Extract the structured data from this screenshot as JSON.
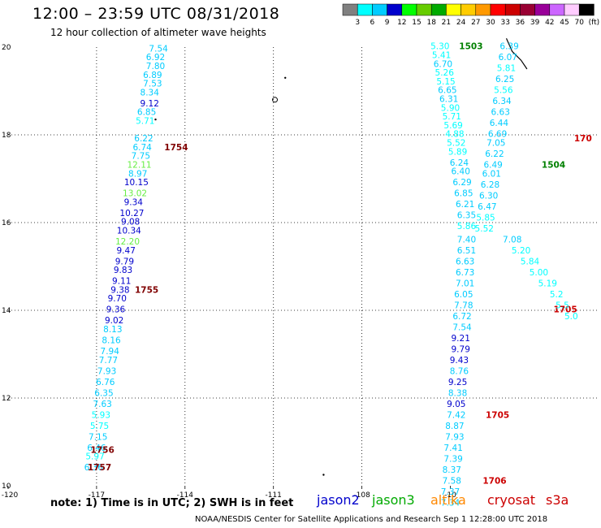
{
  "header": {
    "title": "12:00 – 23:59 UTC 08/31/2018",
    "subtitle": "12 hour collection of altimeter wave heights"
  },
  "footer": {
    "note": "note: 1) Time is in UTC; 2) SWH is in feet",
    "credit": "NOAA/NESDIS Center for Satellite Applications and Research   Sep  1 12:28:00 UTC 2018"
  },
  "satellites": [
    {
      "name": "jason2",
      "color": "#0000cc"
    },
    {
      "name": "jason3",
      "color": "#00aa00"
    },
    {
      "name": "altika",
      "color": "#ff8800"
    },
    {
      "name": "cryosat",
      "color": "#cc0000"
    },
    {
      "name": "s3a",
      "color": "#cc0000"
    }
  ],
  "colorbar": {
    "labels": [
      "3",
      "6",
      "9",
      "12",
      "15",
      "18",
      "21",
      "24",
      "27",
      "30",
      "33",
      "36",
      "39",
      "42",
      "45",
      "70",
      "(ft)"
    ],
    "colors": [
      "#808080",
      "#00ffff",
      "#00ccff",
      "#0000cc",
      "#00ff00",
      "#66cc00",
      "#00aa00",
      "#ffff00",
      "#ffcc00",
      "#ff9900",
      "#ff0000",
      "#cc0000",
      "#990033",
      "#990099",
      "#cc66ff",
      "#ffccff",
      "#000000"
    ]
  },
  "chart_data": {
    "type": "scatter",
    "xlim": [
      -120,
      -100
    ],
    "ylim": [
      10,
      20
    ],
    "xticks": [
      "-120",
      "-117",
      "-114",
      "-111",
      "-108",
      "-10"
    ],
    "yticks": [
      "10",
      "12",
      "14",
      "16",
      "18",
      "20"
    ],
    "grid": true,
    "tracks": [
      {
        "name": "west-track",
        "points": [
          {
            "lon": -114.9,
            "lat": 19.9,
            "v": "7.54"
          },
          {
            "lon": -115.0,
            "lat": 19.7,
            "v": "6.92"
          },
          {
            "lon": -115.0,
            "lat": 19.5,
            "v": "7.80"
          },
          {
            "lon": -115.1,
            "lat": 19.3,
            "v": "6.89"
          },
          {
            "lon": -115.1,
            "lat": 19.1,
            "v": "7.53"
          },
          {
            "lon": -115.2,
            "lat": 18.9,
            "v": "8.34"
          },
          {
            "lon": -115.2,
            "lat": 18.65,
            "v": "9.12"
          },
          {
            "lon": -115.3,
            "lat": 18.45,
            "v": "6.85"
          },
          {
            "lon": -115.35,
            "lat": 18.25,
            "v": "5.71"
          },
          {
            "lon": -115.4,
            "lat": 17.85,
            "v": "6.22"
          },
          {
            "lon": -115.45,
            "lat": 17.65,
            "v": "6.74"
          },
          {
            "lon": -115.5,
            "lat": 17.45,
            "v": "7.75"
          },
          {
            "lon": -115.55,
            "lat": 17.25,
            "v": "12.11"
          },
          {
            "lon": -115.6,
            "lat": 17.05,
            "v": "8.97"
          },
          {
            "lon": -115.65,
            "lat": 16.85,
            "v": "10.15"
          },
          {
            "lon": -115.7,
            "lat": 16.6,
            "v": "13.02"
          },
          {
            "lon": -115.75,
            "lat": 16.4,
            "v": "9.34"
          },
          {
            "lon": -115.8,
            "lat": 16.15,
            "v": "10.27"
          },
          {
            "lon": -115.85,
            "lat": 15.95,
            "v": "9.08"
          },
          {
            "lon": -115.9,
            "lat": 15.75,
            "v": "10.34"
          },
          {
            "lon": -115.95,
            "lat": 15.5,
            "v": "12.20"
          },
          {
            "lon": -116.0,
            "lat": 15.3,
            "v": "9.47"
          },
          {
            "lon": -116.05,
            "lat": 15.05,
            "v": "9.79"
          },
          {
            "lon": -116.1,
            "lat": 14.85,
            "v": "9.83"
          },
          {
            "lon": -116.15,
            "lat": 14.6,
            "v": "9.11"
          },
          {
            "lon": -116.2,
            "lat": 14.4,
            "v": "9.38"
          },
          {
            "lon": -116.3,
            "lat": 14.2,
            "v": "9.70"
          },
          {
            "lon": -116.35,
            "lat": 13.95,
            "v": "9.36"
          },
          {
            "lon": -116.4,
            "lat": 13.7,
            "v": "9.02"
          },
          {
            "lon": -116.45,
            "lat": 13.5,
            "v": "8.13"
          },
          {
            "lon": -116.5,
            "lat": 13.25,
            "v": "8.16"
          },
          {
            "lon": -116.55,
            "lat": 13.0,
            "v": "7.94"
          },
          {
            "lon": -116.6,
            "lat": 12.8,
            "v": "7.77"
          },
          {
            "lon": -116.65,
            "lat": 12.55,
            "v": "7.93"
          },
          {
            "lon": -116.7,
            "lat": 12.3,
            "v": "6.76"
          },
          {
            "lon": -116.75,
            "lat": 12.05,
            "v": "6.35"
          },
          {
            "lon": -116.8,
            "lat": 11.8,
            "v": "7.63"
          },
          {
            "lon": -116.85,
            "lat": 11.55,
            "v": "5.93"
          },
          {
            "lon": -116.9,
            "lat": 11.3,
            "v": "5.75"
          },
          {
            "lon": -116.95,
            "lat": 11.05,
            "v": "7.15"
          },
          {
            "lon": -117.0,
            "lat": 10.8,
            "v": "6.46"
          },
          {
            "lon": -117.05,
            "lat": 10.6,
            "v": "5.97"
          },
          {
            "lon": -117.1,
            "lat": 10.35,
            "v": "6.36"
          }
        ],
        "times": [
          {
            "lon": -114.3,
            "lat": 17.65,
            "t": "1754",
            "color": "#800000"
          },
          {
            "lon": -115.3,
            "lat": 14.4,
            "t": "1755",
            "color": "#800000"
          },
          {
            "lon": -116.8,
            "lat": 10.75,
            "t": "1756",
            "color": "#800000"
          },
          {
            "lon": -116.9,
            "lat": 10.35,
            "t": "1757",
            "color": "#800000"
          }
        ]
      },
      {
        "name": "east-track",
        "points": [
          {
            "lon": -105.35,
            "lat": 19.95,
            "v": "5.30"
          },
          {
            "lon": -105.3,
            "lat": 19.75,
            "v": "5.41"
          },
          {
            "lon": -105.25,
            "lat": 19.55,
            "v": "6.70"
          },
          {
            "lon": -105.2,
            "lat": 19.35,
            "v": "5.26"
          },
          {
            "lon": -105.15,
            "lat": 19.15,
            "v": "5.15"
          },
          {
            "lon": -105.1,
            "lat": 18.95,
            "v": "6.65"
          },
          {
            "lon": -105.05,
            "lat": 18.75,
            "v": "6.31"
          },
          {
            "lon": -105.0,
            "lat": 18.55,
            "v": "5.90"
          },
          {
            "lon": -104.95,
            "lat": 18.35,
            "v": "5.71"
          },
          {
            "lon": -104.9,
            "lat": 18.15,
            "v": "5.69"
          },
          {
            "lon": -104.85,
            "lat": 17.95,
            "v": "4.88"
          },
          {
            "lon": -104.8,
            "lat": 17.75,
            "v": "5.52"
          },
          {
            "lon": -104.75,
            "lat": 17.55,
            "v": "5.89"
          },
          {
            "lon": -104.7,
            "lat": 17.3,
            "v": "6.24"
          },
          {
            "lon": -104.65,
            "lat": 17.1,
            "v": "6.40"
          },
          {
            "lon": -104.6,
            "lat": 16.85,
            "v": "6.29"
          },
          {
            "lon": -104.55,
            "lat": 16.6,
            "v": "6.85"
          },
          {
            "lon": -104.5,
            "lat": 16.35,
            "v": "6.21"
          },
          {
            "lon": -104.45,
            "lat": 16.1,
            "v": "6.35"
          },
          {
            "lon": -104.45,
            "lat": 15.85,
            "v": "5.86"
          },
          {
            "lon": -104.45,
            "lat": 15.55,
            "v": "7.40"
          },
          {
            "lon": -104.45,
            "lat": 15.3,
            "v": "6.51"
          },
          {
            "lon": -104.5,
            "lat": 15.05,
            "v": "6.63"
          },
          {
            "lon": -104.5,
            "lat": 14.8,
            "v": "6.73"
          },
          {
            "lon": -104.5,
            "lat": 14.55,
            "v": "7.01"
          },
          {
            "lon": -104.55,
            "lat": 14.3,
            "v": "6.05"
          },
          {
            "lon": -104.55,
            "lat": 14.05,
            "v": "7.78"
          },
          {
            "lon": -104.6,
            "lat": 13.8,
            "v": "6.72"
          },
          {
            "lon": -104.6,
            "lat": 13.55,
            "v": "7.54"
          },
          {
            "lon": -104.65,
            "lat": 13.3,
            "v": "9.21"
          },
          {
            "lon": -104.65,
            "lat": 13.05,
            "v": "9.79"
          },
          {
            "lon": -104.7,
            "lat": 12.8,
            "v": "9.43"
          },
          {
            "lon": -104.7,
            "lat": 12.55,
            "v": "8.76"
          },
          {
            "lon": -104.75,
            "lat": 12.3,
            "v": "9.25"
          },
          {
            "lon": -104.75,
            "lat": 12.05,
            "v": "8.38"
          },
          {
            "lon": -104.8,
            "lat": 11.8,
            "v": "9.05"
          },
          {
            "lon": -104.8,
            "lat": 11.55,
            "v": "7.42"
          },
          {
            "lon": -104.85,
            "lat": 11.3,
            "v": "8.87"
          },
          {
            "lon": -104.85,
            "lat": 11.05,
            "v": "7.93"
          },
          {
            "lon": -104.9,
            "lat": 10.8,
            "v": "7.41"
          },
          {
            "lon": -104.9,
            "lat": 10.55,
            "v": "7.39"
          },
          {
            "lon": -104.95,
            "lat": 10.3,
            "v": "8.37"
          },
          {
            "lon": -104.95,
            "lat": 10.05,
            "v": "7.58"
          },
          {
            "lon": -105.0,
            "lat": 9.8,
            "v": "7.37"
          },
          {
            "lon": -105.0,
            "lat": 9.55,
            "v": "7.34"
          }
        ],
        "times": [
          {
            "lon": -104.3,
            "lat": 19.95,
            "t": "1503",
            "color": "#008000"
          },
          {
            "lon": -101.5,
            "lat": 17.25,
            "t": "1504",
            "color": "#008000"
          },
          {
            "lon": -101.1,
            "lat": 13.95,
            "t": "1705",
            "color": "#cc0000"
          },
          {
            "lon": -103.4,
            "lat": 11.55,
            "t": "1705",
            "color": "#cc0000"
          },
          {
            "lon": -103.5,
            "lat": 10.05,
            "t": "1706",
            "color": "#cc0000"
          },
          {
            "lon": -100.5,
            "lat": 17.85,
            "t": "170",
            "color": "#cc0000"
          }
        ]
      },
      {
        "name": "east-track-2",
        "points": [
          {
            "lon": -103.0,
            "lat": 19.95,
            "v": "6.39"
          },
          {
            "lon": -103.05,
            "lat": 19.7,
            "v": "6.07"
          },
          {
            "lon": -103.1,
            "lat": 19.45,
            "v": "5.81"
          },
          {
            "lon": -103.15,
            "lat": 19.2,
            "v": "6.25"
          },
          {
            "lon": -103.2,
            "lat": 18.95,
            "v": "5.56"
          },
          {
            "lon": -103.25,
            "lat": 18.7,
            "v": "6.34"
          },
          {
            "lon": -103.3,
            "lat": 18.45,
            "v": "6.63"
          },
          {
            "lon": -103.35,
            "lat": 18.2,
            "v": "6.44"
          },
          {
            "lon": -103.4,
            "lat": 17.95,
            "v": "6.69"
          },
          {
            "lon": -103.45,
            "lat": 17.75,
            "v": "7.05"
          },
          {
            "lon": -103.5,
            "lat": 17.5,
            "v": "6.22"
          },
          {
            "lon": -103.55,
            "lat": 17.25,
            "v": "6.49"
          },
          {
            "lon": -103.6,
            "lat": 17.05,
            "v": "6.01"
          },
          {
            "lon": -103.65,
            "lat": 16.8,
            "v": "6.28"
          },
          {
            "lon": -103.7,
            "lat": 16.55,
            "v": "6.30"
          },
          {
            "lon": -103.75,
            "lat": 16.3,
            "v": "6.47"
          },
          {
            "lon": -103.8,
            "lat": 16.05,
            "v": "5.85"
          },
          {
            "lon": -103.85,
            "lat": 15.8,
            "v": "5.52"
          },
          {
            "lon": -102.9,
            "lat": 15.55,
            "v": "7.08"
          },
          {
            "lon": -102.6,
            "lat": 15.3,
            "v": "5.20"
          },
          {
            "lon": -102.3,
            "lat": 15.05,
            "v": "5.84"
          },
          {
            "lon": -102.0,
            "lat": 14.8,
            "v": "5.00"
          },
          {
            "lon": -101.7,
            "lat": 14.55,
            "v": "5.19"
          },
          {
            "lon": -101.4,
            "lat": 14.3,
            "v": "5.2"
          },
          {
            "lon": -101.2,
            "lat": 14.05,
            "v": "5.5"
          },
          {
            "lon": -100.9,
            "lat": 13.8,
            "v": "5.0"
          }
        ],
        "times": []
      }
    ],
    "coast": [
      {
        "points": [
          [
            -103.1,
            20.2
          ],
          [
            -102.9,
            19.9
          ],
          [
            -102.6,
            19.7
          ],
          [
            -102.4,
            19.5
          ]
        ]
      }
    ]
  }
}
